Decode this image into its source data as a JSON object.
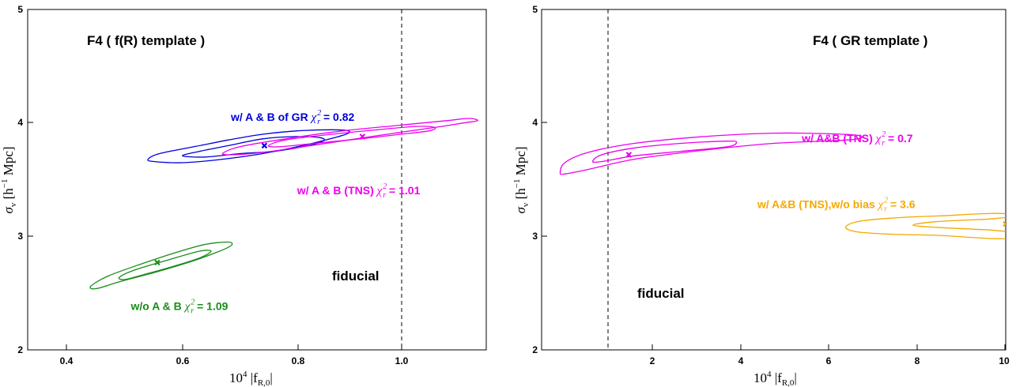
{
  "chart_data": [
    {
      "type": "contour",
      "title": "F4 ( f(R) template )",
      "xlabel": "10⁴ |f_R,0|",
      "ylabel": "σ_v [h⁻¹ Mpc]",
      "xlim": [
        0.35,
        1.15
      ],
      "ylim": [
        2,
        5
      ],
      "xticks": [
        0.4,
        0.6,
        0.8,
        1.0
      ],
      "xtick_labels": [
        "0.4",
        "0.6",
        "0.8",
        "1.0"
      ],
      "yticks": [
        2,
        3,
        4,
        5
      ],
      "ytick_labels": [
        "2",
        "3",
        "4",
        "5"
      ],
      "fiducial_x": 1.0,
      "fiducial_label": "fiducial",
      "grid": false,
      "series": [
        {
          "label": "w/ A & B of GR",
          "chi_value": "0.82",
          "color": "#0000dd",
          "best_fit": [
            0.763,
            3.8
          ],
          "label_pos": [
            0.92,
            4.02
          ],
          "inner": [
            [
              0.62,
              3.71
            ],
            [
              0.65,
              3.75
            ],
            [
              0.7,
              3.8
            ],
            [
              0.76,
              3.86
            ],
            [
              0.82,
              3.88
            ],
            [
              0.86,
              3.87
            ],
            [
              0.865,
              3.84
            ],
            [
              0.83,
              3.79
            ],
            [
              0.78,
              3.75
            ],
            [
              0.72,
              3.73
            ],
            [
              0.66,
              3.7
            ],
            [
              0.62,
              3.71
            ]
          ],
          "outer": [
            [
              0.56,
              3.68
            ],
            [
              0.58,
              3.73
            ],
            [
              0.64,
              3.79
            ],
            [
              0.7,
              3.85
            ],
            [
              0.76,
              3.9
            ],
            [
              0.82,
              3.93
            ],
            [
              0.88,
              3.94
            ],
            [
              0.91,
              3.93
            ],
            [
              0.905,
              3.9
            ],
            [
              0.87,
              3.85
            ],
            [
              0.82,
              3.79
            ],
            [
              0.76,
              3.73
            ],
            [
              0.69,
              3.68
            ],
            [
              0.62,
              3.65
            ],
            [
              0.57,
              3.66
            ],
            [
              0.56,
              3.68
            ]
          ]
        },
        {
          "label": "w/ A & B (TNS)",
          "chi_value": "1.01",
          "color": "#ee00ee",
          "best_fit": [
            0.934,
            3.88
          ],
          "label_pos": [
            0.82,
            3.37
          ],
          "inner": [
            [
              0.77,
              3.8
            ],
            [
              0.8,
              3.85
            ],
            [
              0.88,
              3.9
            ],
            [
              0.96,
              3.94
            ],
            [
              1.03,
              3.97
            ],
            [
              1.06,
              3.96
            ],
            [
              1.05,
              3.93
            ],
            [
              1.0,
              3.9
            ],
            [
              0.93,
              3.86
            ],
            [
              0.85,
              3.82
            ],
            [
              0.79,
              3.79
            ],
            [
              0.77,
              3.8
            ]
          ],
          "outer": [
            [
              0.69,
              3.73
            ],
            [
              0.72,
              3.79
            ],
            [
              0.8,
              3.86
            ],
            [
              0.9,
              3.93
            ],
            [
              1.0,
              3.98
            ],
            [
              1.08,
              4.02
            ],
            [
              1.12,
              4.04
            ],
            [
              1.135,
              4.02
            ],
            [
              1.11,
              4.0
            ],
            [
              1.06,
              3.96
            ],
            [
              0.99,
              3.91
            ],
            [
              0.91,
              3.85
            ],
            [
              0.83,
              3.79
            ],
            [
              0.76,
              3.74
            ],
            [
              0.71,
              3.72
            ],
            [
              0.69,
              3.73
            ]
          ]
        },
        {
          "label": "w/o A & B",
          "chi_value": "1.09",
          "color": "#1a8c1a",
          "best_fit": [
            0.576,
            2.77
          ],
          "label_pos": [
            0.53,
            2.35
          ],
          "inner": [
            [
              0.51,
              2.64
            ],
            [
              0.54,
              2.71
            ],
            [
              0.6,
              2.8
            ],
            [
              0.65,
              2.87
            ],
            [
              0.67,
              2.87
            ],
            [
              0.65,
              2.81
            ],
            [
              0.6,
              2.73
            ],
            [
              0.55,
              2.66
            ],
            [
              0.52,
              2.62
            ],
            [
              0.51,
              2.64
            ]
          ],
          "outer": [
            [
              0.46,
              2.56
            ],
            [
              0.49,
              2.65
            ],
            [
              0.55,
              2.76
            ],
            [
              0.61,
              2.86
            ],
            [
              0.66,
              2.93
            ],
            [
              0.7,
              2.95
            ],
            [
              0.705,
              2.92
            ],
            [
              0.68,
              2.86
            ],
            [
              0.63,
              2.77
            ],
            [
              0.57,
              2.68
            ],
            [
              0.51,
              2.6
            ],
            [
              0.47,
              2.54
            ],
            [
              0.46,
              2.56
            ]
          ]
        }
      ]
    },
    {
      "type": "contour",
      "title": "F4 ( GR template )",
      "xlabel": "10⁴ |f_R,0|",
      "ylabel": "σ_v [h⁻¹ Mpc]",
      "xlim": [
        0,
        10
      ],
      "ylim": [
        2,
        5
      ],
      "xticks": [
        2,
        4,
        6,
        8,
        10
      ],
      "xtick_labels": [
        "2",
        "4",
        "6",
        "8",
        "10"
      ],
      "yticks": [
        2,
        3,
        4,
        5
      ],
      "ytick_labels": [
        "2",
        "3",
        "4",
        "5"
      ],
      "fiducial_x": 1.0,
      "fiducial_label": "fiducial",
      "grid": false,
      "series": [
        {
          "label": "w/ A&B (TNS)",
          "chi_value": "0.7",
          "color": "#ee00ee",
          "best_fit": [
            1.88,
            3.72
          ],
          "label_pos": [
            8.0,
            3.83
          ],
          "inner": [
            [
              1.1,
              3.66
            ],
            [
              1.3,
              3.72
            ],
            [
              2.0,
              3.78
            ],
            [
              3.0,
              3.82
            ],
            [
              4.0,
              3.84
            ],
            [
              4.2,
              3.83
            ],
            [
              4.0,
              3.79
            ],
            [
              3.0,
              3.75
            ],
            [
              2.0,
              3.71
            ],
            [
              1.3,
              3.66
            ],
            [
              1.1,
              3.66
            ]
          ],
          "outer": [
            [
              0.4,
              3.56
            ],
            [
              0.5,
              3.65
            ],
            [
              1.0,
              3.74
            ],
            [
              2.0,
              3.82
            ],
            [
              3.5,
              3.88
            ],
            [
              5.0,
              3.91
            ],
            [
              6.5,
              3.9
            ],
            [
              6.9,
              3.88
            ],
            [
              6.6,
              3.85
            ],
            [
              5.0,
              3.82
            ],
            [
              3.5,
              3.76
            ],
            [
              2.0,
              3.68
            ],
            [
              1.0,
              3.59
            ],
            [
              0.5,
              3.55
            ],
            [
              0.4,
              3.56
            ]
          ]
        },
        {
          "label": "w/ A&B (TNS),w/o bias",
          "chi_value": "3.6",
          "color": "#f5a800",
          "best_fit": [
            10.0,
            3.11
          ],
          "label_pos": [
            8.05,
            3.25
          ],
          "inner": [
            [
              8.0,
              3.1
            ],
            [
              8.5,
              3.13
            ],
            [
              9.5,
              3.15
            ],
            [
              10.2,
              3.16
            ],
            [
              10.2,
              3.05
            ],
            [
              9.5,
              3.06
            ],
            [
              8.5,
              3.08
            ],
            [
              8.0,
              3.1
            ]
          ],
          "outer": [
            [
              6.55,
              3.08
            ],
            [
              6.8,
              3.13
            ],
            [
              7.5,
              3.16
            ],
            [
              8.5,
              3.18
            ],
            [
              10.2,
              3.19
            ],
            [
              10.2,
              2.99
            ],
            [
              8.5,
              3.01
            ],
            [
              7.5,
              3.02
            ],
            [
              6.8,
              3.04
            ],
            [
              6.55,
              3.08
            ]
          ]
        }
      ]
    }
  ]
}
